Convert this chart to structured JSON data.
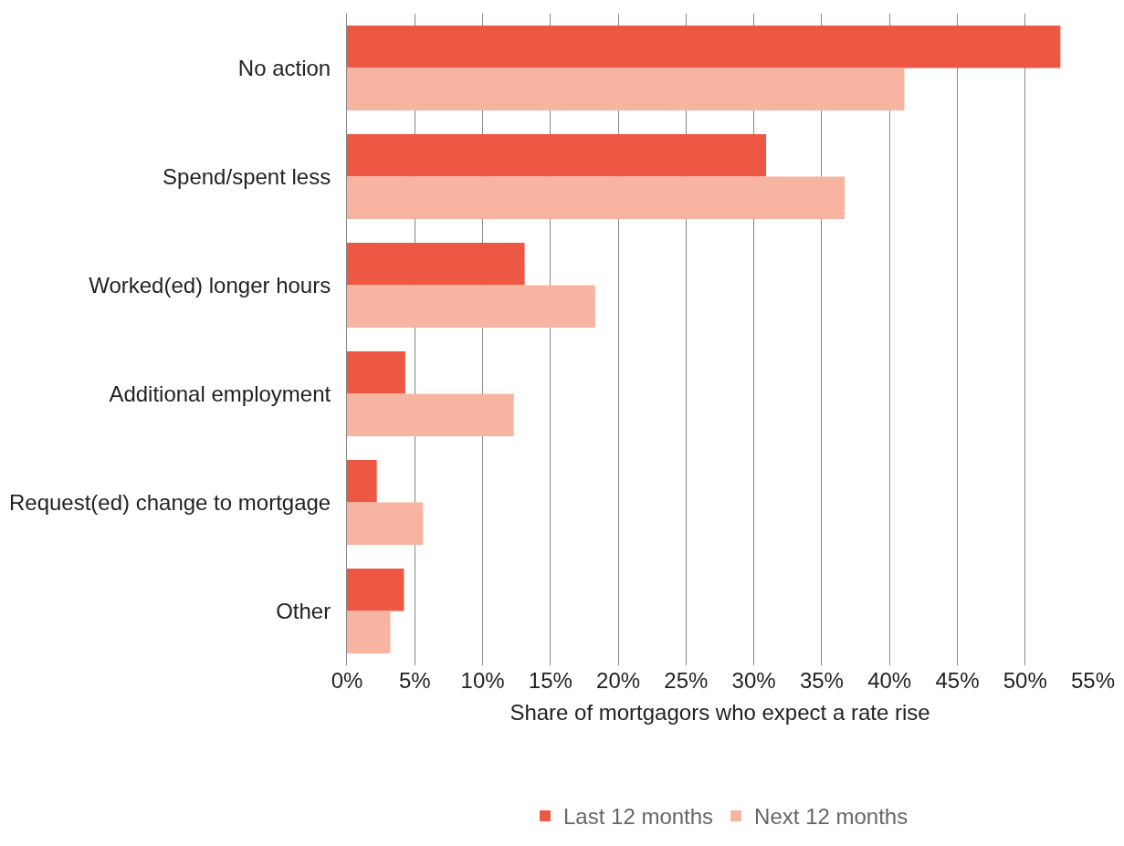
{
  "chart_data": {
    "type": "bar",
    "orientation": "horizontal",
    "xlabel": "Share of mortgagors who expect a rate rise",
    "categories": [
      "No action",
      "Spend/spent less",
      "Worked(ed) longer hours",
      "Additional employment",
      "Request(ed) change to mortgage",
      "Other"
    ],
    "series": [
      {
        "name": "Last 12 months",
        "color": "#ec5843",
        "values": [
          52.6,
          30.9,
          13.1,
          4.3,
          2.2,
          4.2
        ]
      },
      {
        "name": "Next 12 months",
        "color": "#f7b4a0",
        "values": [
          41.1,
          36.7,
          18.3,
          12.3,
          5.6,
          3.2
        ]
      }
    ],
    "xlim": [
      0,
      55
    ],
    "xticks": [
      {
        "value": 0,
        "label": "0%"
      },
      {
        "value": 5,
        "label": "5%"
      },
      {
        "value": 10,
        "label": "10%"
      },
      {
        "value": 15,
        "label": "15%"
      },
      {
        "value": 20,
        "label": "20%"
      },
      {
        "value": 25,
        "label": "25%"
      },
      {
        "value": 30,
        "label": "30%"
      },
      {
        "value": 35,
        "label": "35%"
      },
      {
        "value": 40,
        "label": "40%"
      },
      {
        "value": 45,
        "label": "45%"
      },
      {
        "value": 50,
        "label": "50%"
      },
      {
        "value": 55,
        "label": "55%"
      }
    ],
    "grid": "x",
    "legend": "bottom"
  }
}
